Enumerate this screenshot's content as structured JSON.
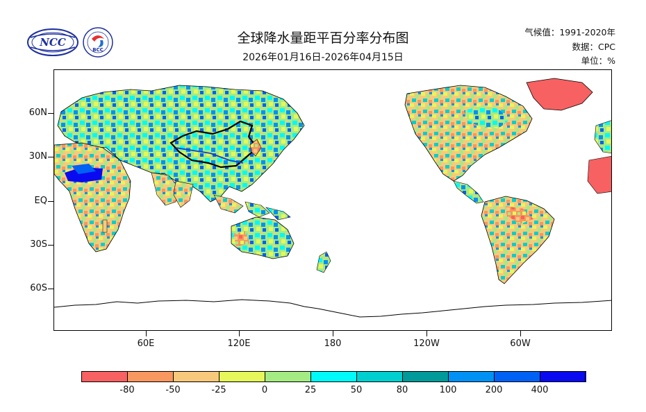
{
  "title": "全球降水量距平百分率分布图",
  "subtitle": "2026年01月16日-2026年04月15日",
  "meta": {
    "climate_label": "气候值：",
    "climate_value": "1991-2020年",
    "data_label": "数据：",
    "data_value": "CPC",
    "unit_label": "单位：",
    "unit_value": "%"
  },
  "logos": {
    "ncc": {
      "name": "ncc-logo",
      "text": "NCC"
    },
    "bcc": {
      "name": "bcc-logo",
      "text": "BCC"
    }
  },
  "lat_labels": [
    "60N",
    "30N",
    "EQ",
    "30S",
    "60S"
  ],
  "lon_labels": [
    "60E",
    "120E",
    "180",
    "120W",
    "60W"
  ],
  "colorbar": {
    "colors": [
      "#f86161",
      "#f8975f",
      "#f8c97c",
      "#e5f75a",
      "#a5eb84",
      "#00fafa",
      "#00cfcf",
      "#009a9a",
      "#0091f5",
      "#0061f5",
      "#0a0af0"
    ],
    "labels": [
      "-80",
      "-50",
      "-25",
      "0",
      "25",
      "50",
      "80",
      "100",
      "200",
      "400"
    ]
  }
}
